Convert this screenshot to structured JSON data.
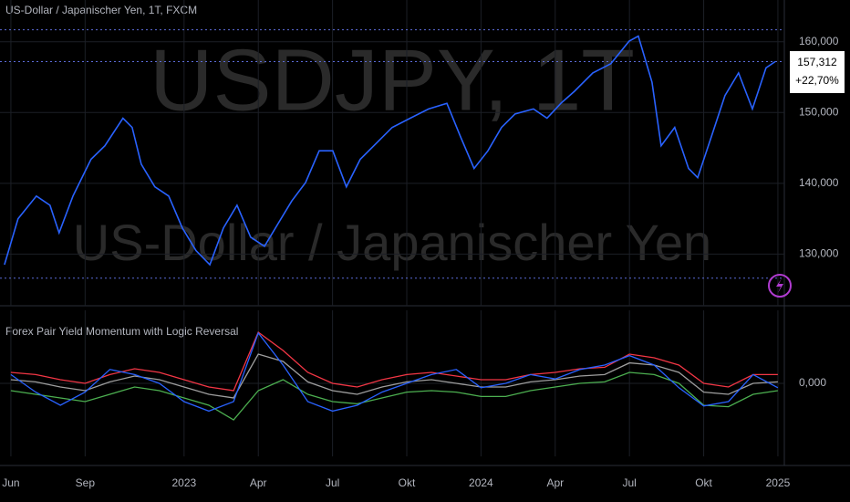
{
  "chart_data": [
    {
      "type": "line",
      "title": "US-Dollar / Japanischer Yen, 1T, FXCM",
      "annotations": [
        "USDJPY, 1T",
        "US-Dollar / Japanischer Yen"
      ],
      "last_price_label": "157,312",
      "change_label": "+22,70%",
      "color": "#2962ff",
      "x": [
        -0.26,
        0.29,
        1.03,
        1.58,
        1.95,
        2.51,
        3.24,
        3.8,
        4.53,
        4.9,
        5.27,
        5.82,
        6.38,
        6.93,
        7.48,
        8.04,
        8.59,
        9.14,
        9.69,
        10.25,
        10.8,
        11.35,
        11.91,
        12.46,
        13.01,
        13.56,
        14.12,
        14.67,
        15.41,
        16.14,
        16.88,
        17.62,
        18.17,
        18.72,
        19.28,
        19.83,
        20.38,
        21.12,
        21.67,
        22.23,
        22.78,
        23.52,
        24.25,
        24.99,
        25.36,
        25.91,
        26.28,
        26.83,
        27.39,
        27.76,
        28.31,
        28.86,
        29.41,
        29.97,
        30.52,
        30.89
      ],
      "values": [
        128.5,
        135,
        138.2,
        136.9,
        133,
        138.2,
        143.4,
        145.3,
        149.2,
        147.9,
        142.7,
        139.5,
        138.2,
        133.7,
        130.5,
        128.5,
        133.7,
        136.9,
        132.4,
        131.1,
        134.3,
        137.5,
        140.1,
        144.6,
        144.6,
        139.5,
        143.4,
        145.3,
        147.9,
        149.2,
        150.5,
        151.3,
        146.6,
        142.1,
        144.6,
        147.9,
        149.8,
        150.5,
        149.2,
        151.3,
        153.0,
        155.6,
        156.9,
        160.1,
        160.8,
        154.3,
        145.3,
        147.9,
        142.1,
        140.8,
        146.6,
        152.4,
        155.6,
        150.5,
        156.3,
        157.2
      ],
      "xlim": [
        -0.44,
        31.26
      ],
      "xticks": [
        {
          "value": 0,
          "label": "Jun"
        },
        {
          "value": 3,
          "label": "Sep"
        },
        {
          "value": 7,
          "label": "2023"
        },
        {
          "value": 10,
          "label": "Apr"
        },
        {
          "value": 13,
          "label": "Jul"
        },
        {
          "value": 16,
          "label": "Okt"
        },
        {
          "value": 19,
          "label": "2024"
        },
        {
          "value": 22,
          "label": "Apr"
        },
        {
          "value": 25,
          "label": "Jul"
        },
        {
          "value": 28,
          "label": "Okt"
        },
        {
          "value": 31,
          "label": "2025"
        }
      ],
      "ylim": [
        122.7,
        165.9
      ],
      "yticks": [
        {
          "value": 130,
          "label": "130,000"
        },
        {
          "value": 140,
          "label": "140,000"
        },
        {
          "value": 150,
          "label": "150,000"
        },
        {
          "value": 160,
          "label": "160,000"
        }
      ],
      "hlines": [
        161.7,
        157.2,
        126.6
      ],
      "hline_color": "#5b6bd6",
      "grid": true
    },
    {
      "type": "line",
      "title": "Forex Pair Yield Momentum with Logic Reversal",
      "x": [
        0,
        1,
        2,
        3,
        4,
        5,
        6,
        7,
        8,
        9,
        10,
        11,
        12,
        13,
        14,
        15,
        16,
        17,
        18,
        19,
        20,
        21,
        22,
        23,
        24,
        25,
        26,
        27,
        28,
        29,
        30,
        31
      ],
      "lines": [
        {
          "color": "#f23645",
          "values": [
            0.15,
            0.12,
            0.05,
            0.0,
            0.12,
            0.2,
            0.15,
            0.05,
            -0.05,
            -0.1,
            0.7,
            0.45,
            0.15,
            0.0,
            -0.05,
            0.05,
            0.12,
            0.15,
            0.1,
            0.05,
            0.05,
            0.12,
            0.15,
            0.2,
            0.22,
            0.4,
            0.35,
            0.25,
            0.0,
            -0.05,
            0.12,
            0.12
          ]
        },
        {
          "color": "#9e9e9e",
          "values": [
            0.05,
            0.02,
            -0.05,
            -0.1,
            0.02,
            0.1,
            0.05,
            -0.05,
            -0.15,
            -0.2,
            0.4,
            0.3,
            0.02,
            -0.1,
            -0.15,
            -0.05,
            0.02,
            0.05,
            0.0,
            -0.05,
            -0.05,
            0.02,
            0.05,
            0.1,
            0.12,
            0.28,
            0.25,
            0.15,
            -0.12,
            -0.15,
            0.0,
            0.02
          ]
        },
        {
          "color": "#4caf50",
          "values": [
            -0.1,
            -0.15,
            -0.2,
            -0.25,
            -0.15,
            -0.05,
            -0.1,
            -0.2,
            -0.3,
            -0.5,
            -0.1,
            0.05,
            -0.15,
            -0.25,
            -0.28,
            -0.2,
            -0.12,
            -0.1,
            -0.12,
            -0.18,
            -0.18,
            -0.1,
            -0.05,
            0.0,
            0.02,
            0.15,
            0.12,
            0.0,
            -0.3,
            -0.32,
            -0.15,
            -0.1
          ]
        },
        {
          "color": "#2962ff",
          "values": [
            0.12,
            -0.12,
            -0.3,
            -0.12,
            0.19,
            0.12,
            0.0,
            -0.25,
            -0.38,
            -0.25,
            0.69,
            0.25,
            -0.25,
            -0.38,
            -0.3,
            -0.12,
            0.0,
            0.12,
            0.19,
            -0.06,
            0.0,
            0.12,
            0.06,
            0.19,
            0.25,
            0.38,
            0.25,
            -0.06,
            -0.31,
            -0.25,
            0.12,
            -0.06
          ]
        }
      ],
      "xlim": [
        -0.44,
        31.26
      ],
      "ylim": [
        -1,
        1
      ],
      "yticks": [
        {
          "value": 0,
          "label": "0,000"
        }
      ],
      "grid": true
    }
  ]
}
